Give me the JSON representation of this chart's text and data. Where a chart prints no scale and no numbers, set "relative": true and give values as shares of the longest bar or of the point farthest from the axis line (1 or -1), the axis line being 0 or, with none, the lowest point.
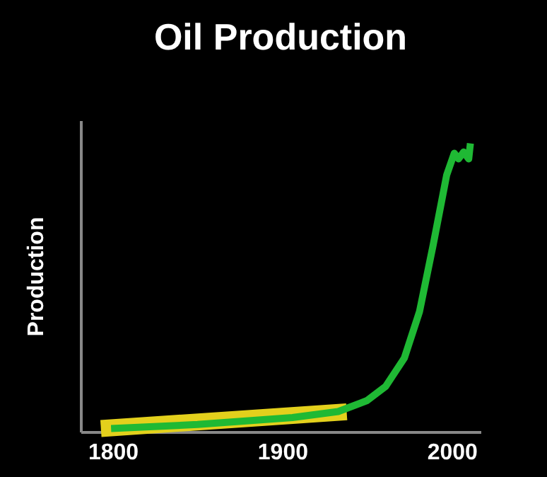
{
  "chart_data": {
    "type": "line",
    "title": "Oil Production",
    "ylabel": "Production",
    "relative": true,
    "tick_labels": "x",
    "xlim": [
      1781,
      2017
    ],
    "xticks": [
      1800,
      1900,
      2000
    ],
    "series": [
      {
        "color": "#e3d01c",
        "x": [
          1793,
          1938
        ],
        "values": [
          0.011,
          0.069
        ]
      },
      {
        "color": "#1fb934",
        "x": [
          1799,
          1850,
          1906,
          1933,
          1950,
          1961,
          1972,
          1981,
          1989,
          1997,
          2001.5,
          2004,
          2007,
          2010,
          2011
        ],
        "values": [
          0.011,
          0.025,
          0.049,
          0.07,
          0.108,
          0.157,
          0.255,
          0.417,
          0.647,
          0.89,
          0.966,
          0.946,
          0.97,
          0.946,
          1
        ]
      }
    ]
  }
}
